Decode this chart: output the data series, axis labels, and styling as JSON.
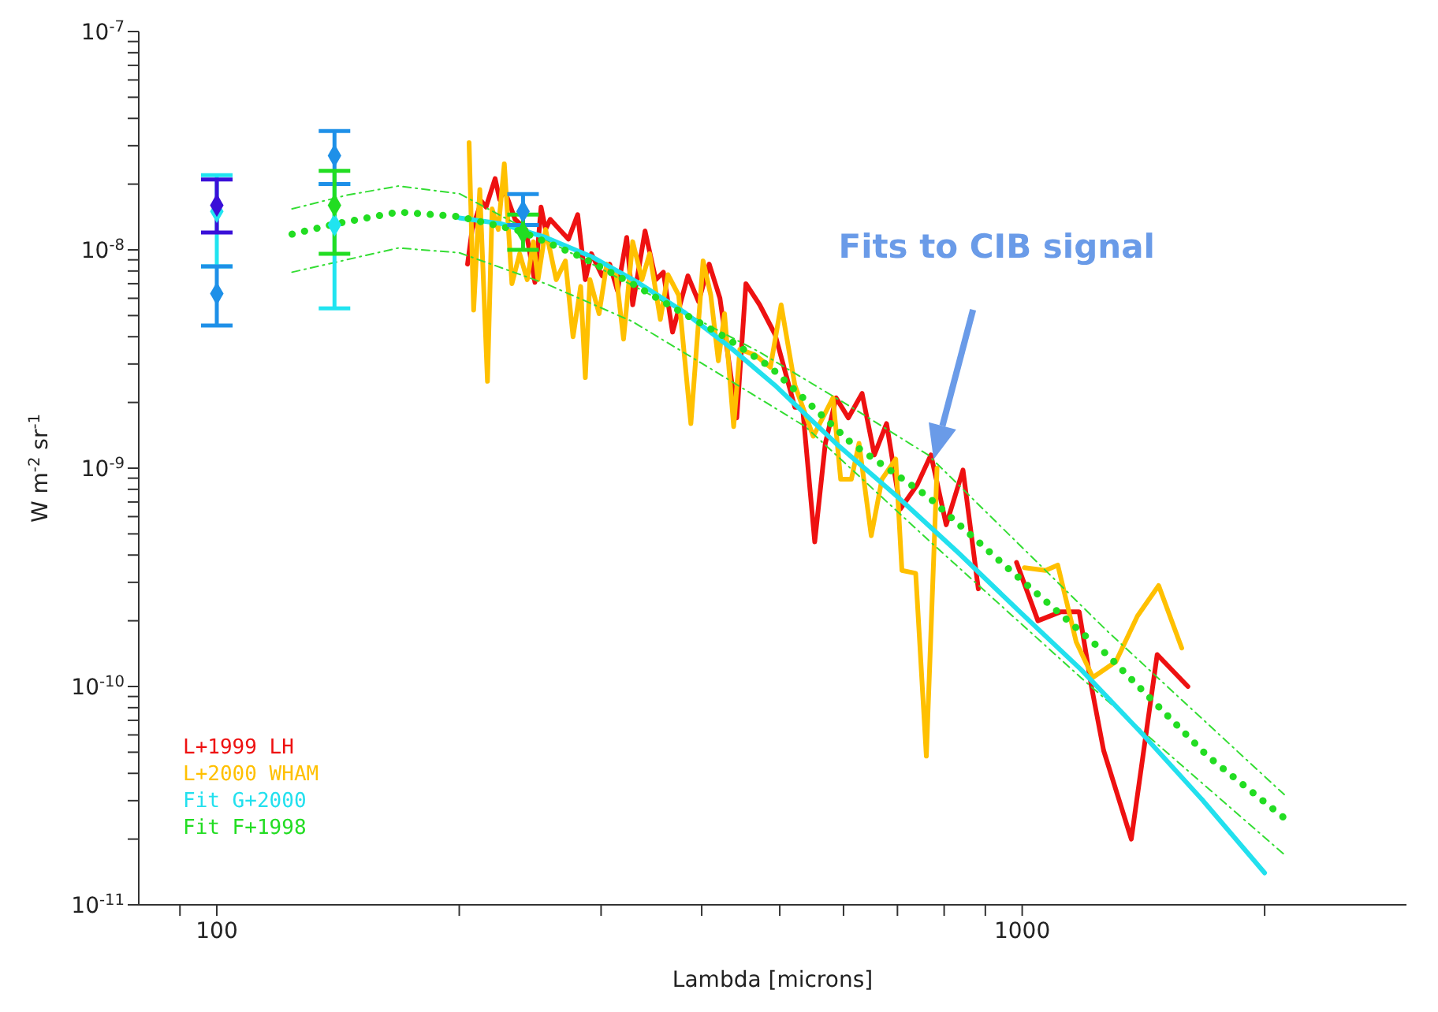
{
  "chart_data": {
    "type": "line",
    "xlabel": "Lambda [microns]",
    "ylabel": "W m$^{-2}$ sr$^{-1}$",
    "log": "xy",
    "legend": "bottom left",
    "xlim": [
      80,
      3000
    ],
    "ylim": [
      1e-11,
      1e-07
    ],
    "xticks": [
      {
        "value": 90,
        "label": null
      },
      100,
      {
        "value": 200,
        "label": null
      },
      {
        "value": 300,
        "label": null
      },
      {
        "value": 400,
        "label": null
      },
      {
        "value": 500,
        "label": null
      },
      {
        "value": 600,
        "label": null
      },
      {
        "value": 700,
        "label": null
      },
      {
        "value": 800,
        "label": null
      },
      {
        "value": 900,
        "label": null
      },
      1000,
      {
        "value": 2000,
        "label": null
      }
    ],
    "yticks": [
      {
        "value": 1e-11,
        "label": "10$^{-11}$"
      },
      {
        "value": 2e-11,
        "label": null
      },
      {
        "value": 3e-11,
        "label": null
      },
      {
        "value": 4e-11,
        "label": null
      },
      {
        "value": 5e-11,
        "label": null
      },
      {
        "value": 6e-11,
        "label": null
      },
      {
        "value": 7e-11,
        "label": null
      },
      {
        "value": 8e-11,
        "label": null
      },
      {
        "value": 9e-11,
        "label": null
      },
      {
        "value": 1e-10,
        "label": "10$^{-10}$"
      },
      {
        "value": 2e-10,
        "label": null
      },
      {
        "value": 3e-10,
        "label": null
      },
      {
        "value": 4e-10,
        "label": null
      },
      {
        "value": 5e-10,
        "label": null
      },
      {
        "value": 6e-10,
        "label": null
      },
      {
        "value": 7e-10,
        "label": null
      },
      {
        "value": 8e-10,
        "label": null
      },
      {
        "value": 9e-10,
        "label": null
      },
      {
        "value": 1e-09,
        "label": "10$^{-9}$"
      },
      {
        "value": 2e-09,
        "label": null
      },
      {
        "value": 3e-09,
        "label": null
      },
      {
        "value": 4e-09,
        "label": null
      },
      {
        "value": 5e-09,
        "label": null
      },
      {
        "value": 6e-09,
        "label": null
      },
      {
        "value": 7e-09,
        "label": null
      },
      {
        "value": 8e-09,
        "label": null
      },
      {
        "value": 9e-09,
        "label": null
      },
      {
        "value": 1e-08,
        "label": "10$^{-8}$"
      },
      {
        "value": 2e-08,
        "label": null
      },
      {
        "value": 3e-08,
        "label": null
      },
      {
        "value": 4e-08,
        "label": null
      },
      {
        "value": 5e-08,
        "label": null
      },
      {
        "value": 6e-08,
        "label": null
      },
      {
        "value": 7e-08,
        "label": null
      },
      {
        "value": 8e-08,
        "label": null
      },
      {
        "value": 9e-08,
        "label": null
      },
      {
        "value": 1e-07,
        "label": "10$^{-7}$"
      }
    ],
    "annotations": [
      "Fits to CIB signal"
    ],
    "series": [
      {
        "name": "L+1999 LH",
        "color": "#ee1111",
        "line_style": "solid",
        "x": [
          204.8,
          207.5,
          213.1,
          215.9,
          221.6,
          224.5,
          227.5,
          234.6,
          241.9,
          248.3,
          252.7,
          256.0,
          259.4,
          267.4,
          273.3,
          280.6,
          286.8,
          291.8,
          300.9,
          307.5,
          314.4,
          322.8,
          328.4,
          340.2,
          350.8,
          358.5,
          368.0,
          384.5,
          396.4,
          408.7,
          421.4,
          442.2,
          453.9,
          472.1,
          493.3,
          522.1,
          533.7,
          552.6,
          569.6,
          587.4,
          608.3,
          632.7,
          655.3,
          678.6,
          705.9,
          740.7,
          770.3,
          783.9,
          804.7,
          844.3,
          882.1,
          950,
          984,
          1046,
          1117,
          1177,
          1219,
          1262,
          1366,
          1471,
          1606
        ],
        "values": [
          8.6e-09,
          1.24e-08,
          1.67e-08,
          1.57e-08,
          2.12e-08,
          1.7e-08,
          1.89e-08,
          1.38e-08,
          1.24e-08,
          7.1e-09,
          1.57e-08,
          1.24e-08,
          1.38e-08,
          1.22e-08,
          1.12e-08,
          1.45e-08,
          7.3e-09,
          9.6e-09,
          7.6e-09,
          8.6e-09,
          6.5e-09,
          1.14e-08,
          5.6e-09,
          1.22e-08,
          7.3e-09,
          7.9e-09,
          4.2e-09,
          7.6e-09,
          5.8e-09,
          8.6e-09,
          6e-09,
          1.7e-09,
          7e-09,
          5.6e-09,
          4.1e-09,
          1.9e-09,
          1.9e-09,
          4.6e-10,
          1.3e-09,
          2.1e-09,
          1.7e-09,
          2.2e-09,
          1.15e-09,
          1.6e-09,
          6.5e-10,
          8.4e-10,
          1.15e-09,
          8.6e-10,
          5.5e-10,
          9.8e-10,
          2.8e-10,
          null,
          3.7e-10,
          2e-10,
          2.2e-10,
          2.2e-10,
          1e-10,
          5.1e-11,
          2e-11,
          1.4e-10,
          1e-10
        ]
      },
      {
        "name": "L+2000 WHAM",
        "color": "#ffc000",
        "line_style": "solid",
        "x": [
          205.7,
          208.4,
          212.1,
          216.8,
          219.7,
          223.6,
          227.5,
          232.5,
          237.7,
          242.9,
          247.2,
          250.5,
          256.0,
          263.9,
          270.9,
          276.9,
          283.0,
          286.8,
          290.6,
          298.3,
          304.9,
          312.9,
          319.9,
          328.4,
          337.2,
          344.7,
          355.4,
          363.2,
          374.5,
          387.8,
          401.6,
          410.5,
          419.5,
          427.0,
          438.3,
          446.1,
          466.0,
          486.8,
          502.0,
          522.1,
          550.2,
          582.2,
          595.1,
          613.6,
          627.2,
          649.5,
          669.7,
          696.6,
          709.0,
          737.5,
          760.3,
          783.9,
          900,
          1006,
          1069,
          1107,
          1167,
          1224,
          1307,
          1390,
          1477,
          1578
        ],
        "values": [
          3.1e-08,
          5.3e-09,
          1.89e-08,
          2.5e-09,
          1.54e-08,
          1.24e-08,
          2.48e-08,
          7e-09,
          9.6e-09,
          7.3e-09,
          1.09e-08,
          7.3e-09,
          1.24e-08,
          7.3e-09,
          8.9e-09,
          4e-09,
          6.8e-09,
          2.6e-09,
          7.3e-09,
          5.1e-09,
          8.6e-09,
          7.9e-09,
          3.9e-09,
          1.09e-08,
          7.3e-09,
          9.6e-09,
          4.8e-09,
          7.7e-09,
          6.2e-09,
          1.6e-09,
          8.9e-09,
          6.2e-09,
          3.1e-09,
          5.1e-09,
          1.55e-09,
          3.5e-09,
          3.3e-09,
          2.9e-09,
          5.6e-09,
          2.4e-09,
          1.4e-09,
          2.1e-09,
          8.9e-10,
          8.9e-10,
          1.3e-09,
          4.9e-10,
          8.9e-10,
          1.1e-09,
          3.4e-10,
          3.3e-10,
          4.8e-11,
          1e-09,
          null,
          3.5e-10,
          3.4e-10,
          3.6e-10,
          1.6e-10,
          1.1e-10,
          1.3e-10,
          2.1e-10,
          2.9e-10,
          1.5e-10
        ]
      },
      {
        "color": "#33dd33",
        "line_style": "dashed",
        "x": [
          124,
          145,
          168,
          200,
          264,
          352,
          472,
          614,
          764,
          1274,
          2115
        ],
        "values": [
          1.54e-08,
          1.78e-08,
          1.96e-08,
          1.81e-08,
          1.05e-08,
          6e-09,
          3.4e-09,
          1.9e-09,
          1.15e-09,
          1.8e-10,
          3.2e-11
        ]
      },
      {
        "color": "#33dd33",
        "line_style": "dashed",
        "x": [
          124,
          168,
          200,
          256,
          328,
          414,
          538,
          764,
          1182,
          2115
        ],
        "values": [
          7.9e-09,
          1.02e-08,
          9.7e-09,
          7e-09,
          4.7e-09,
          2.8e-09,
          1.55e-09,
          4.7e-10,
          1.1e-10,
          1.7e-11
        ]
      },
      {
        "name": "Fit G+2000",
        "color": "#22e0ee",
        "line_style": "solid",
        "x": [
          200,
          225,
          256,
          292,
          333,
          380,
          433,
          493,
          587,
          700,
          833,
          993,
          1182,
          1408,
          1677,
          2000
        ],
        "values": [
          1.4e-08,
          1.32e-08,
          1.14e-08,
          9.3e-09,
          7.1e-09,
          5.2e-09,
          3.6e-09,
          2.4e-09,
          1.3e-09,
          7.4e-10,
          4.1e-10,
          2.2e-10,
          1.2e-10,
          6.1e-11,
          3e-11,
          1.4e-11
        ]
      },
      {
        "name": "Fit F+1998",
        "color": "#22dd22",
        "line_style": "dotted",
        "x": [
          124,
          141,
          168,
          200,
          238,
          283,
          328,
          380,
          427,
          487,
          614,
          764,
          950,
          1274,
          1699,
          2115
        ],
        "values": [
          1.18e-08,
          1.32e-08,
          1.49e-08,
          1.42e-08,
          1.22e-08,
          9.3e-09,
          7e-09,
          5.1e-09,
          4e-09,
          2.9e-09,
          1.3e-09,
          7.4e-10,
          3.6e-10,
          1.4e-10,
          4.8e-11,
          2.5e-11
        ]
      },
      {
        "type": "scatter",
        "color": "#20e4f0",
        "marker": "diamond",
        "x": [
          100,
          140
        ],
        "values": [
          1.5e-08,
          1.3e-08
        ],
        "errors": [
          [
            8.4e-09,
            2.2e-08
          ],
          [
            5.4e-09,
            2e-08
          ]
        ]
      },
      {
        "type": "scatter",
        "color": "#1e90e8",
        "marker": "diamond",
        "x": [
          100,
          140,
          240
        ],
        "values": [
          6.3e-09,
          2.7e-08,
          1.5e-08
        ],
        "errors": [
          [
            4.5e-09,
            8.4e-09
          ],
          [
            2e-08,
            3.5e-08
          ],
          [
            1.3e-08,
            1.8e-08
          ]
        ]
      },
      {
        "type": "scatter",
        "color": "#22dd22",
        "marker": "diamond",
        "x": [
          140,
          240
        ],
        "values": [
          1.6e-08,
          1.2e-08
        ],
        "errors": [
          [
            9.6e-09,
            2.3e-08
          ],
          [
            1e-08,
            1.45e-08
          ]
        ]
      },
      {
        "type": "scatter",
        "color": "#3a10d8",
        "marker": "diamond",
        "x": [
          100
        ],
        "values": [
          1.6e-08
        ],
        "errors": [
          [
            1.2e-08,
            2.1e-08
          ]
        ]
      }
    ]
  }
}
